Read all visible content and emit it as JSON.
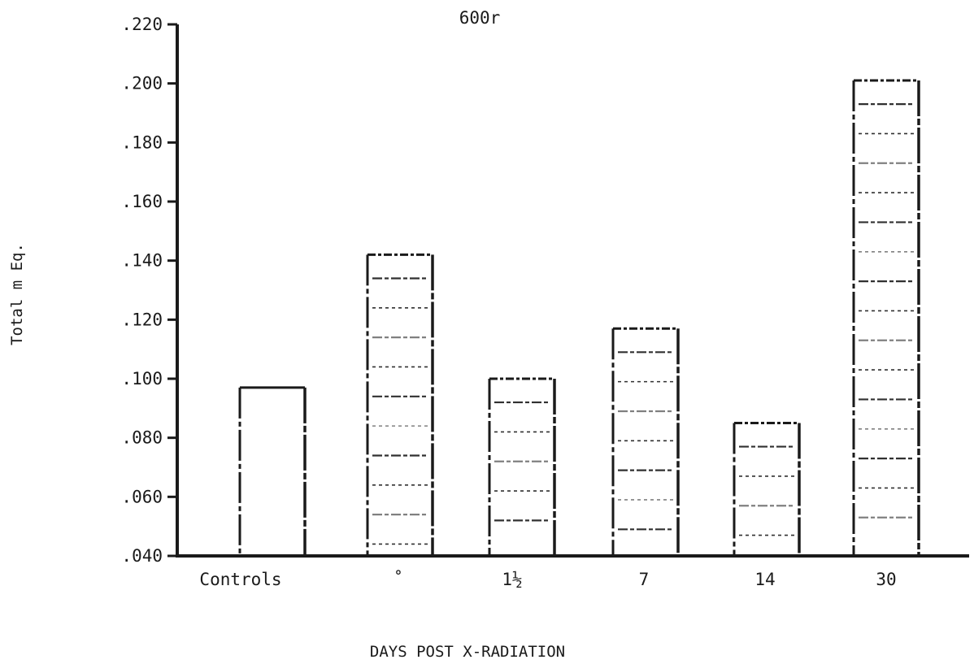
{
  "chart_data": {
    "type": "bar",
    "title": "600r",
    "xlabel": "DAYS POST X-RADIATION",
    "ylabel": "Total m Eq.",
    "categories": [
      "Controls",
      "˚",
      "1½",
      "7",
      "14",
      "30"
    ],
    "values": [
      0.097,
      0.142,
      0.1,
      0.117,
      0.085,
      0.201
    ],
    "hatched": [
      false,
      true,
      true,
      true,
      true,
      true
    ],
    "ylim": [
      0.04,
      0.22
    ],
    "yticks": [
      ".040",
      ".060",
      ".080",
      ".100",
      ".120",
      ".140",
      ".160",
      ".180",
      ".200",
      ".220"
    ],
    "grid": false,
    "colors": {
      "ink": "#1a1a1a",
      "background": "#ffffff"
    }
  }
}
